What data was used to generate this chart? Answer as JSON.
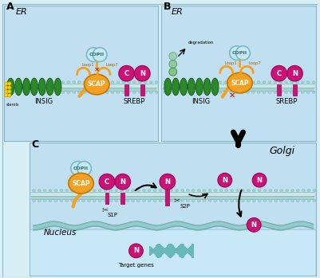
{
  "fig_w": 4.01,
  "fig_h": 3.49,
  "dpi": 100,
  "bg_outer": "#d8eef5",
  "panel_bg": "#c0dff0",
  "golgi_bg": "#b8d8ec",
  "nucleus_bg": "#c8e8f8",
  "membrane_top": "#c8e8e8",
  "membrane_bot": "#a8d0d0",
  "membrane_dot": "#88b8b8",
  "insig_color": "#2a8a2a",
  "insig_edge": "#1a5a1a",
  "scap_color": "#F4A020",
  "scap_edge": "#c07800",
  "copii_color": "#c8e8f0",
  "copii_edge": "#7ab8c8",
  "srebp_color": "#cc1177",
  "srebp_edge": "#990055",
  "sterol_color": "#FFD700",
  "loop_color": "#F4A020",
  "degrade_color": "#88bb88",
  "arrow_color": "#111111",
  "label_A": "A",
  "label_B": "B",
  "label_C": "C",
  "er_label": "ER",
  "insig_label": "INSIG",
  "scap_label": "SCAP",
  "srebp_label": "SREBP",
  "copii_label": "COPII",
  "golgi_label": "Golgi",
  "nucleus_label": "Nucleus",
  "s1p_label": "S1P",
  "s2p_label": "S2P",
  "target_label": "Target genes",
  "degradation_label": "degradation",
  "sterols_label": "sterols",
  "loop1_label": "Loop1",
  "loop7_label": "Loop7"
}
